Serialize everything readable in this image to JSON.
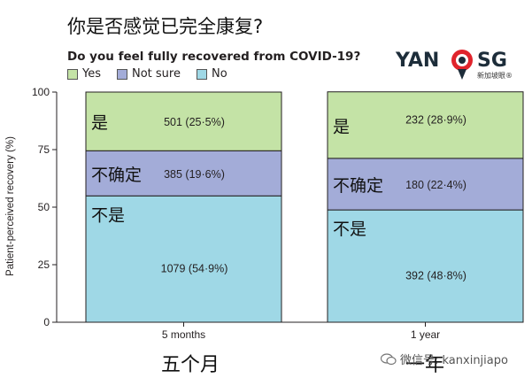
{
  "cn_title": "你是否感觉已完全康复?",
  "chart_data": {
    "type": "bar",
    "stacked": true,
    "title": "Do you feel fully recovered from COVID-19?",
    "ylabel": "Patient-perceived recovery (%)",
    "xlabel": "",
    "ylim": [
      0,
      100
    ],
    "yticks": [
      0,
      25,
      50,
      75,
      100
    ],
    "categories": [
      "5 months",
      "1 year"
    ],
    "category_labels_cn": [
      "五个月",
      "一年"
    ],
    "legend_position": "top-left",
    "series": [
      {
        "name": "No",
        "cn_label": "不是",
        "color": "#9fd8e6",
        "values": [
          54.9,
          48.8
        ],
        "labels": [
          "1079 (54·9%)",
          "392 (48·8%)"
        ]
      },
      {
        "name": "Not sure",
        "cn_label": "不确定",
        "color": "#a3acd8",
        "values": [
          19.6,
          22.4
        ],
        "labels": [
          "385 (19·6%)",
          "180 (22·4%)"
        ]
      },
      {
        "name": "Yes",
        "cn_label": "是",
        "color": "#c4e3a6",
        "values": [
          25.5,
          28.9
        ],
        "labels": [
          "501 (25·5%)",
          "232 (28·9%)"
        ]
      }
    ]
  },
  "legend": [
    {
      "label": "Yes",
      "color": "#c4e3a6"
    },
    {
      "label": "Not sure",
      "color": "#a3acd8"
    },
    {
      "label": "No",
      "color": "#9fd8e6"
    }
  ],
  "logo": {
    "left": "YAN",
    "right": "SG",
    "sub": "新加坡眼®"
  },
  "watermark": "微信号: kanxinjiapo",
  "colors": {
    "axis": "#231f20",
    "bar_border": "#231f20",
    "text_dark": "#111111"
  }
}
